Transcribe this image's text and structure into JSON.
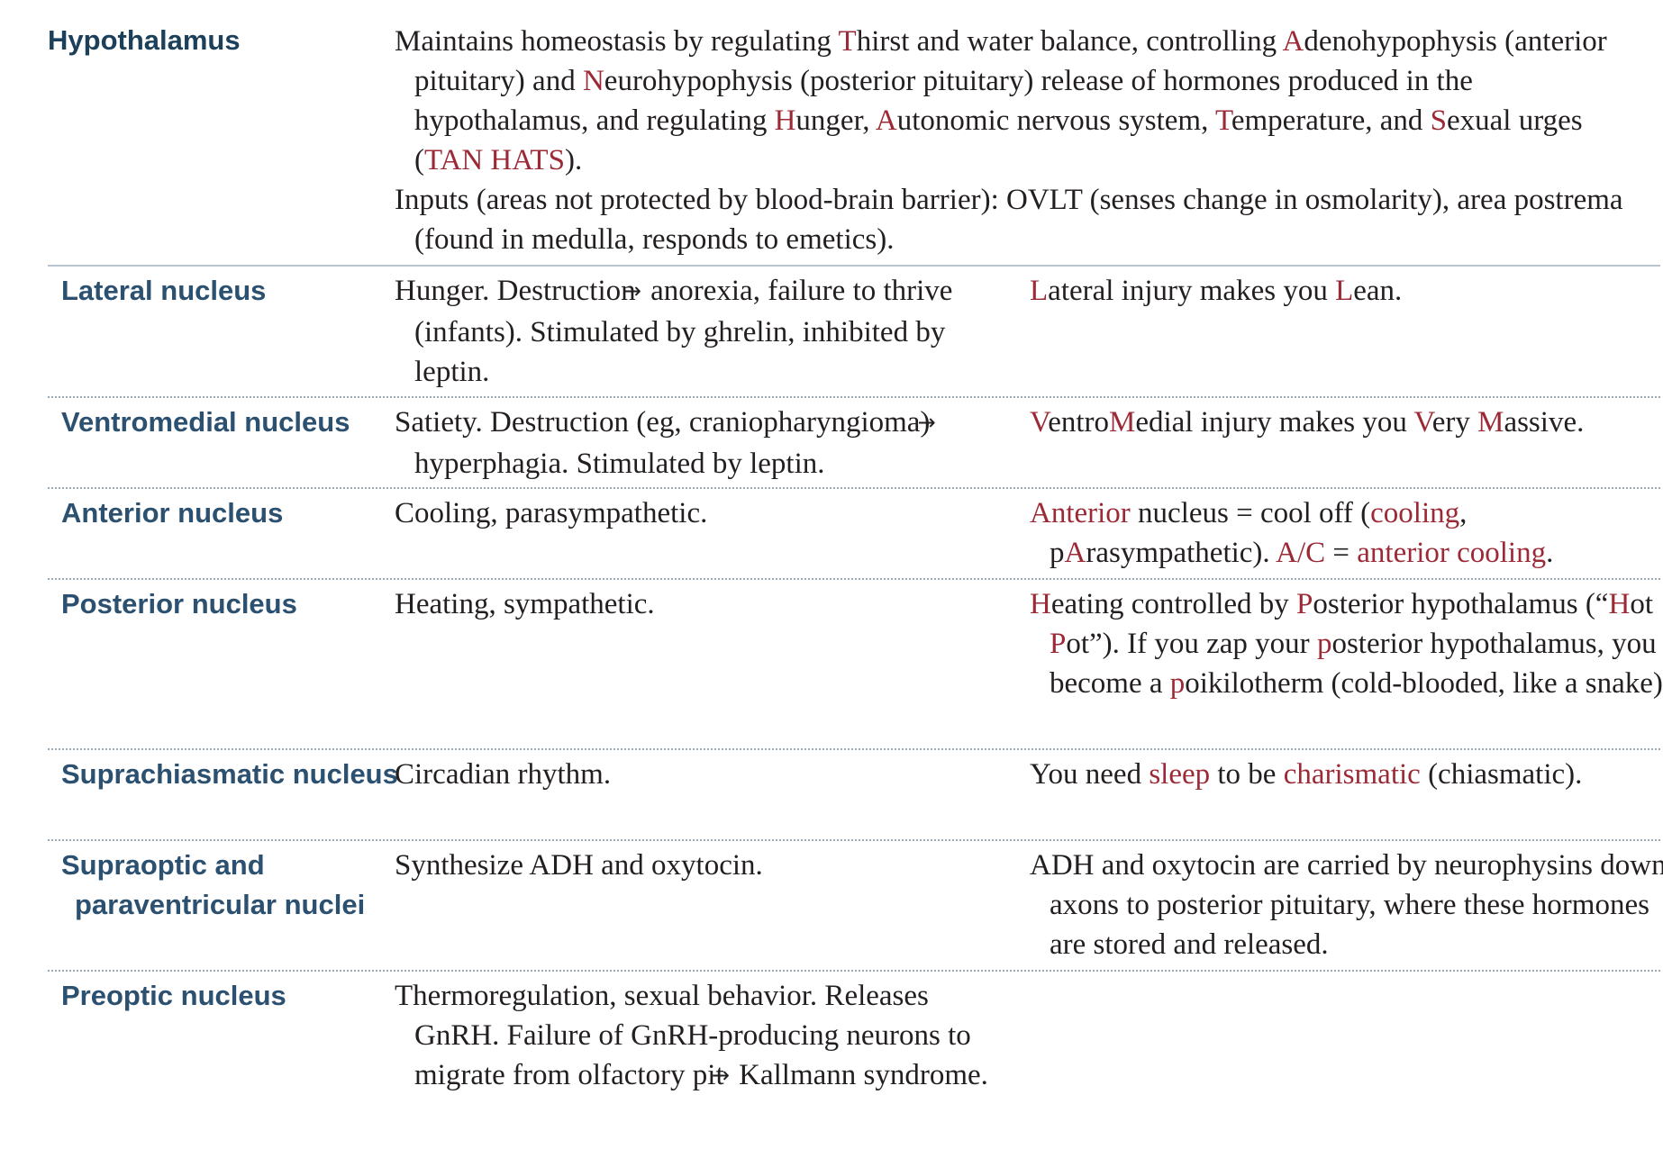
{
  "header": {
    "term": "Hypothalamus",
    "p1": [
      {
        "t": "Maintains homeostasis by regulating "
      },
      {
        "t": "T",
        "s": "hl"
      },
      {
        "t": "hirst and water balance, controlling "
      },
      {
        "t": "A",
        "s": "hl"
      },
      {
        "t": "denohypophysis (anterior pituitary) and "
      },
      {
        "t": "N",
        "s": "hl"
      },
      {
        "t": "eurohypophysis (posterior pituitary) release of hormones produced in the hypothalamus, and regulating "
      },
      {
        "t": "H",
        "s": "hl"
      },
      {
        "t": "unger, "
      },
      {
        "t": "A",
        "s": "hl"
      },
      {
        "t": "utonomic nervous system, "
      },
      {
        "t": "T",
        "s": "hl"
      },
      {
        "t": "emperature, and "
      },
      {
        "t": "S",
        "s": "hl"
      },
      {
        "t": "exual urges ("
      },
      {
        "t": "TAN HATS",
        "s": "hl"
      },
      {
        "t": ")."
      }
    ],
    "p2": [
      {
        "t": "Inputs (areas not protected by blood-brain barrier): OVLT (senses change in osmolarity), area postrema (found in medulla, responds to emetics)."
      }
    ]
  },
  "rows": [
    {
      "term": "Lateral nucleus",
      "desc": [
        {
          "t": "Hunger. Destruction "
        },
        {
          "t": "→",
          "s": "arrow"
        },
        {
          "t": " anorexia, failure to thrive (infants). Stimulated by ghrelin, inhibited by leptin."
        }
      ],
      "mnemonic": [
        {
          "t": "L",
          "s": "hl"
        },
        {
          "t": "ateral injury makes you "
        },
        {
          "t": "L",
          "s": "hl"
        },
        {
          "t": "ean."
        }
      ]
    },
    {
      "term": "Ventromedial nucleus",
      "desc": [
        {
          "t": "Satiety. Destruction (eg, craniopharyngioma) "
        },
        {
          "t": "→",
          "s": "arrow"
        },
        {
          "t": " hyperphagia. Stimulated by leptin."
        }
      ],
      "mnemonic": [
        {
          "t": "V",
          "s": "hl"
        },
        {
          "t": "entro"
        },
        {
          "t": "M",
          "s": "hl"
        },
        {
          "t": "edial injury makes you "
        },
        {
          "t": "V",
          "s": "hl"
        },
        {
          "t": "ery "
        },
        {
          "t": "M",
          "s": "hl"
        },
        {
          "t": "assive."
        }
      ]
    },
    {
      "term": "Anterior nucleus",
      "desc": [
        {
          "t": "Cooling, parasympathetic."
        }
      ],
      "mnemonic": [
        {
          "t": "Anterior",
          "s": "hl"
        },
        {
          "t": " nucleus = cool off ("
        },
        {
          "t": "cooling",
          "s": "hl"
        },
        {
          "t": ", p"
        },
        {
          "t": "A",
          "s": "hl"
        },
        {
          "t": "rasympathetic). "
        },
        {
          "t": "A/C",
          "s": "hl"
        },
        {
          "t": " = "
        },
        {
          "t": "anterior cooling",
          "s": "hl"
        },
        {
          "t": "."
        }
      ]
    },
    {
      "term": "Posterior nucleus",
      "desc": [
        {
          "t": "Heating, sympathetic."
        }
      ],
      "mnemonic": [
        {
          "t": "H",
          "s": "hl"
        },
        {
          "t": "eating controlled by "
        },
        {
          "t": "P",
          "s": "hl"
        },
        {
          "t": "osterior hypothalamus (“"
        },
        {
          "t": "H",
          "s": "hl"
        },
        {
          "t": "ot "
        },
        {
          "t": "P",
          "s": "hl"
        },
        {
          "t": "ot”). If you zap your "
        },
        {
          "t": "p",
          "s": "hl"
        },
        {
          "t": "osterior hypothalamus, you become a "
        },
        {
          "t": "p",
          "s": "hl"
        },
        {
          "t": "oikilotherm (cold-blooded, like a snake)."
        }
      ]
    },
    {
      "term": "Suprachiasmatic nucleus",
      "desc": [
        {
          "t": "Circadian rhythm."
        }
      ],
      "mnemonic": [
        {
          "t": "You need "
        },
        {
          "t": "sleep",
          "s": "hl"
        },
        {
          "t": " to be "
        },
        {
          "t": "charismatic",
          "s": "hl"
        },
        {
          "t": " (chiasmatic)."
        }
      ]
    },
    {
      "term": "Supraoptic and paraventricular nuclei",
      "desc": [
        {
          "t": "Synthesize ADH and oxytocin."
        }
      ],
      "mnemonic": [
        {
          "t": "ADH and oxytocin are carried by neurophysins down axons to posterior pituitary, where these hormones are stored and released."
        }
      ]
    },
    {
      "term": "Preoptic nucleus",
      "desc": [
        {
          "t": "Thermoregulation, sexual behavior. Releases GnRH. Failure of GnRH-producing neurons to migrate from olfactory pit "
        },
        {
          "t": "→",
          "s": "arrow"
        },
        {
          "t": " Kallmann syndrome."
        }
      ],
      "mnemonic": []
    }
  ],
  "colors": {
    "heading": "#1c3f5a",
    "term": "#2b5070",
    "highlight": "#9b2a36",
    "text": "#231f20"
  }
}
